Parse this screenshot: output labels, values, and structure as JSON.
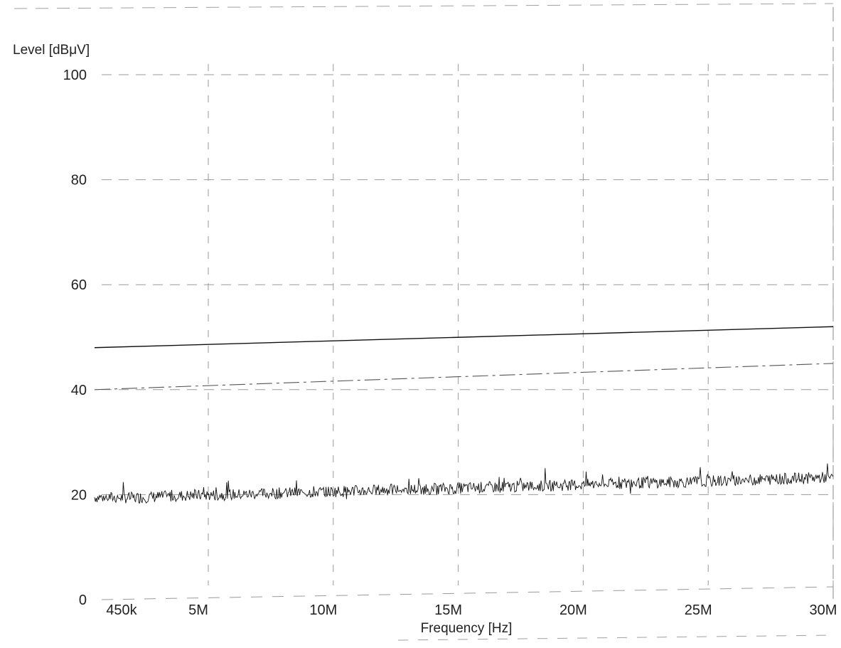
{
  "chart_data": {
    "type": "line",
    "title": "",
    "ylabel": "Level [dBμV]",
    "xlabel": "Frequency [Hz]",
    "ylim": [
      0,
      100
    ],
    "xlim": [
      450000,
      30000000
    ],
    "grid": true,
    "y_ticks": [
      {
        "value": 100,
        "label": "100"
      },
      {
        "value": 80,
        "label": "80"
      },
      {
        "value": 60,
        "label": "60"
      },
      {
        "value": 40,
        "label": "40"
      },
      {
        "value": 20,
        "label": "20"
      },
      {
        "value": 0,
        "label": "0"
      }
    ],
    "x_ticks": [
      {
        "value": 450000,
        "label": "450k"
      },
      {
        "value": 5000000,
        "label": "5M"
      },
      {
        "value": 10000000,
        "label": "10M"
      },
      {
        "value": 15000000,
        "label": "15M"
      },
      {
        "value": 20000000,
        "label": "20M"
      },
      {
        "value": 25000000,
        "label": "25M"
      },
      {
        "value": 30000000,
        "label": "30M"
      }
    ],
    "series": [
      {
        "x": [
          450000,
          30000000
        ],
        "y": [
          48,
          52
        ],
        "color": "#111111"
      },
      {
        "x": [
          450000,
          30000000
        ],
        "y": [
          40,
          45
        ],
        "color": "#555555"
      },
      {
        "x": [
          450000,
          2000000,
          4000000,
          6000000,
          8000000,
          10000000,
          12000000,
          14000000,
          16000000,
          18000000,
          20000000,
          22000000,
          24000000,
          26000000,
          28000000,
          30000000
        ],
        "y": [
          19.5,
          19.4,
          19.8,
          20.0,
          20.3,
          20.6,
          20.9,
          21.1,
          21.4,
          21.6,
          21.9,
          22.2,
          22.4,
          22.7,
          23.0,
          23.3
        ],
        "color": "#111111"
      }
    ]
  }
}
